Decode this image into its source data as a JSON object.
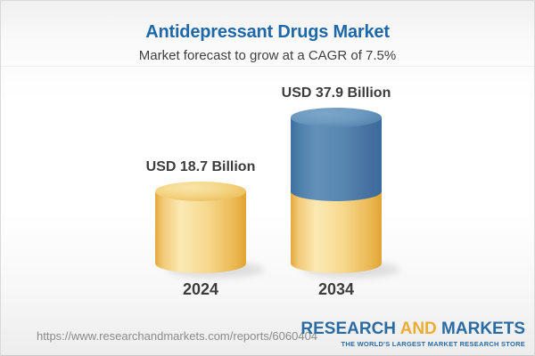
{
  "header": {
    "title": "Antidepressant Drugs Market",
    "subtitle": "Market forecast to grow at a CAGR of 7.5%"
  },
  "chart_data": {
    "type": "bar",
    "style": "3d-cylinder",
    "title": "Antidepressant Drugs Market",
    "subtitle": "Market forecast to grow at a CAGR of 7.5%",
    "categories": [
      "2024",
      "2034"
    ],
    "values": [
      18.7,
      37.9
    ],
    "unit": "USD Billion",
    "cagr_percent": 7.5,
    "value_labels": [
      "USD 18.7 Billion",
      "USD 37.9 Billion"
    ],
    "colors": {
      "base_segment_gold": "#f2cb79",
      "growth_segment_blue": "#5585b0",
      "label_text": "#3c3c3c"
    },
    "notes": "2034 bar is stacked: gold lower segment equals the 2024 base value, blue upper segment is incremental growth"
  },
  "bars": [
    {
      "year": "2024",
      "value_label": "USD 18.7 Billion"
    },
    {
      "year": "2034",
      "value_label": "USD 37.9 Billion"
    }
  ],
  "footer": {
    "url": "https://www.researchandmarkets.com/reports/6060404",
    "logo": {
      "part1": "RESEARCH",
      "part2": "AND",
      "part3": "MARKETS",
      "tagline": "THE WORLD'S LARGEST MARKET RESEARCH STORE",
      "blue": "#2a6ba4",
      "orange": "#efac33"
    }
  }
}
